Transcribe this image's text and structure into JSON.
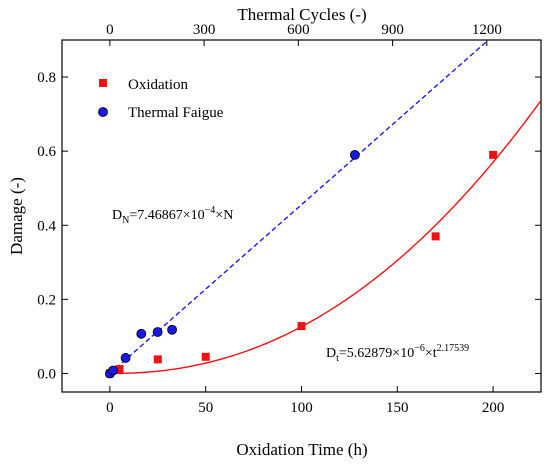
{
  "chart_data": {
    "type": "scatter",
    "title": "",
    "xlabel": "Oxidation Time (h)",
    "ylabel": "Damage (-)",
    "x2label": "Thermal Cycles (-)",
    "xlim": [
      -25,
      225
    ],
    "ylim": [
      -0.05,
      0.9
    ],
    "x_ticks": [
      0,
      50,
      100,
      150,
      200
    ],
    "x_tick_labels": [
      "0",
      "50",
      "100",
      "150",
      "200"
    ],
    "y_ticks": [
      0.0,
      0.2,
      0.4,
      0.6,
      0.8
    ],
    "y_tick_labels": [
      "0.0",
      "0.2",
      "0.4",
      "0.6",
      "0.8"
    ],
    "x2lim": [
      -152.5,
      1372.5
    ],
    "x2_ticks": [
      0,
      300,
      600,
      900,
      1200
    ],
    "x2_tick_labels": [
      "0",
      "300",
      "600",
      "900",
      "1200"
    ],
    "grid": false,
    "legend_position": "top-left",
    "series": [
      {
        "name": "Oxidation",
        "marker": "square",
        "color": "#ee1111",
        "axis": "bottom",
        "x": [
          0,
          5,
          25,
          50,
          100,
          170,
          200
        ],
        "y": [
          0.0,
          0.012,
          0.038,
          0.045,
          0.128,
          0.37,
          0.59
        ]
      },
      {
        "name": "Thermal Faigue",
        "marker": "circle",
        "color": "#1a1ae6",
        "axis": "top",
        "x": [
          0,
          10,
          50,
          100,
          152,
          198,
          780
        ],
        "y": [
          0.0,
          0.008,
          0.042,
          0.107,
          0.112,
          0.118,
          0.59
        ]
      }
    ],
    "fits": [
      {
        "style": "solid",
        "color": "#ee1111",
        "axis": "bottom",
        "coef": 5.62879e-06,
        "exponent": 2.17539,
        "x_range": [
          0,
          225
        ],
        "label_parts": [
          "D",
          "t",
          "=5.62879×10",
          "−6",
          "×t",
          "2.17539"
        ]
      },
      {
        "style": "dashed",
        "color": "#1a1ae6",
        "axis": "top",
        "slope": 0.000746867,
        "x_range": [
          0,
          1200
        ],
        "label_parts": [
          "D",
          "N",
          "=7.46867×10",
          "−4",
          "×N"
        ]
      }
    ]
  }
}
